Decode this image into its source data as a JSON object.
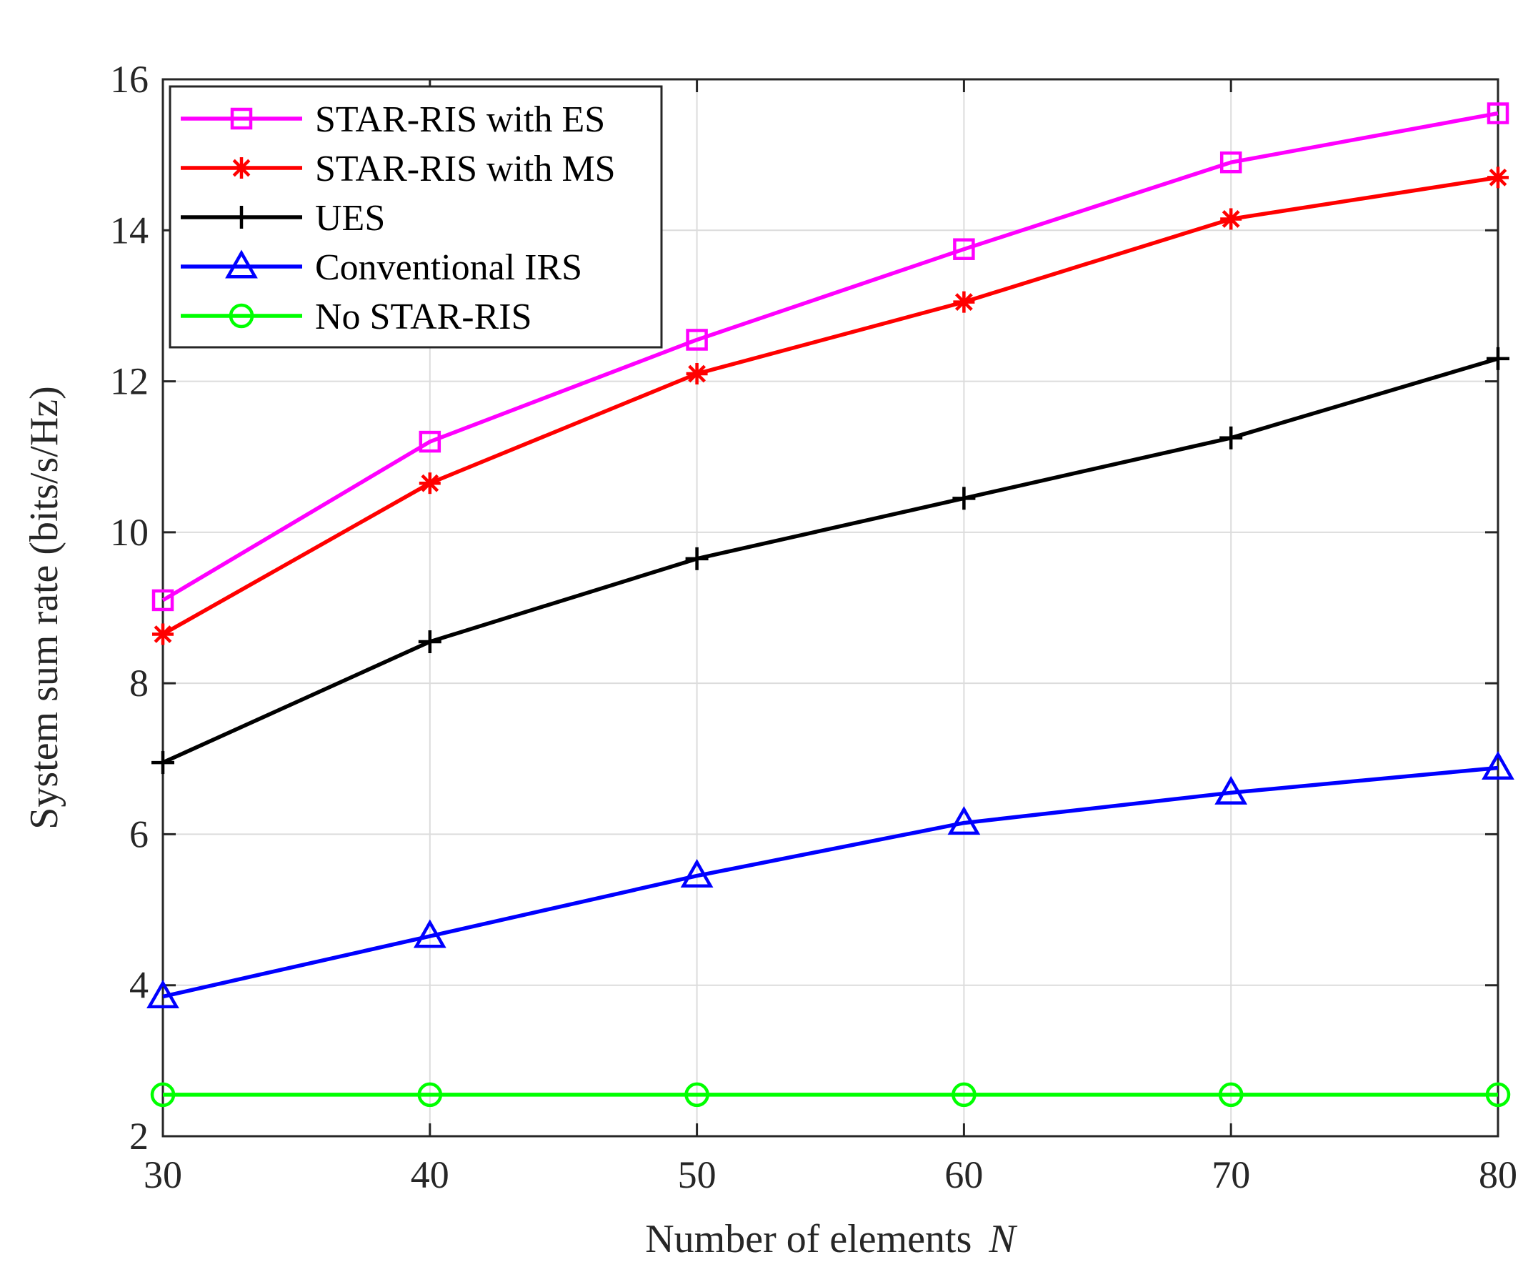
{
  "chart_data": {
    "type": "line",
    "title": "",
    "xlabel": "Number of elements",
    "xlabel_var": "N",
    "ylabel": "System sum rate (bits/s/Hz)",
    "x": [
      30,
      40,
      50,
      60,
      70,
      80
    ],
    "xlim": [
      30,
      80
    ],
    "ylim": [
      2,
      16
    ],
    "xticks": [
      "30",
      "40",
      "50",
      "60",
      "70",
      "80"
    ],
    "yticks": [
      "2",
      "4",
      "6",
      "8",
      "10",
      "12",
      "14",
      "16"
    ],
    "grid": true,
    "legend_position": "top-left",
    "series": [
      {
        "name": "STAR-RIS with ES",
        "color": "#ff00ff",
        "marker": "square",
        "values": [
          9.1,
          11.2,
          12.55,
          13.75,
          14.9,
          15.55
        ]
      },
      {
        "name": "STAR-RIS with MS",
        "color": "#ff0000",
        "marker": "asterisk",
        "values": [
          8.65,
          10.65,
          12.1,
          13.05,
          14.15,
          14.7
        ]
      },
      {
        "name": "UES",
        "color": "#000000",
        "marker": "plus",
        "values": [
          6.95,
          8.55,
          9.65,
          10.45,
          11.25,
          12.3
        ]
      },
      {
        "name": "Conventional IRS",
        "color": "#0000ff",
        "marker": "triangle",
        "values": [
          3.85,
          4.65,
          5.45,
          6.15,
          6.55,
          6.88
        ]
      },
      {
        "name": "No STAR-RIS",
        "color": "#00ff00",
        "marker": "circle",
        "values": [
          2.55,
          2.55,
          2.55,
          2.55,
          2.55,
          2.55
        ]
      }
    ]
  }
}
